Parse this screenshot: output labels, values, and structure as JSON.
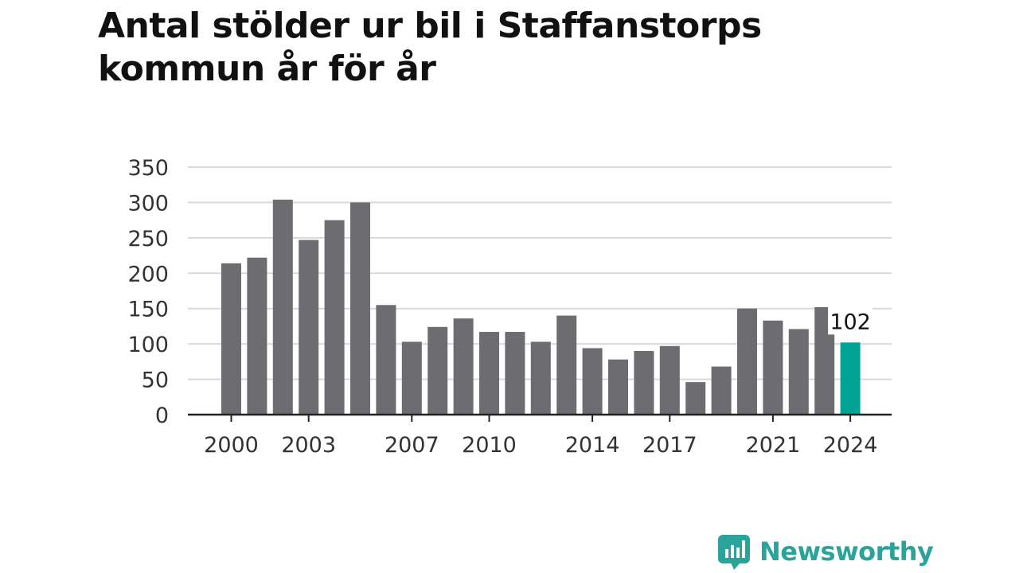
{
  "title_lines": [
    "Antal stölder ur bil i Staffanstorps",
    "kommun år för år"
  ],
  "chart_data": {
    "type": "bar",
    "title": "Antal stölder ur bil i Staffanstorps kommun år för år",
    "xlabel": "",
    "ylabel": "",
    "x": [
      2000,
      2001,
      2002,
      2003,
      2004,
      2005,
      2006,
      2007,
      2008,
      2009,
      2010,
      2011,
      2012,
      2013,
      2014,
      2015,
      2016,
      2017,
      2018,
      2019,
      2020,
      2021,
      2022,
      2023,
      2024
    ],
    "values": [
      214,
      222,
      304,
      247,
      275,
      300,
      155,
      103,
      124,
      136,
      117,
      117,
      103,
      140,
      94,
      78,
      90,
      97,
      46,
      68,
      150,
      133,
      121,
      152,
      102
    ],
    "ylim": [
      0,
      350
    ],
    "yticks": [
      0,
      50,
      100,
      150,
      200,
      250,
      300,
      350
    ],
    "xtick_labels": [
      2000,
      2003,
      2007,
      2010,
      2014,
      2017,
      2021,
      2024
    ],
    "annotation": {
      "x": 2024,
      "text": "102"
    },
    "grid": true,
    "colors": {
      "bar": "#6d6c71",
      "highlight": "#00a396",
      "grid": "#d9d9d9",
      "axis": "#222222",
      "text": "#333333"
    }
  },
  "logo": {
    "text": "Newsworthy",
    "icon": "bar-chart-speech-bubble-icon",
    "color": "#2aa39a"
  }
}
